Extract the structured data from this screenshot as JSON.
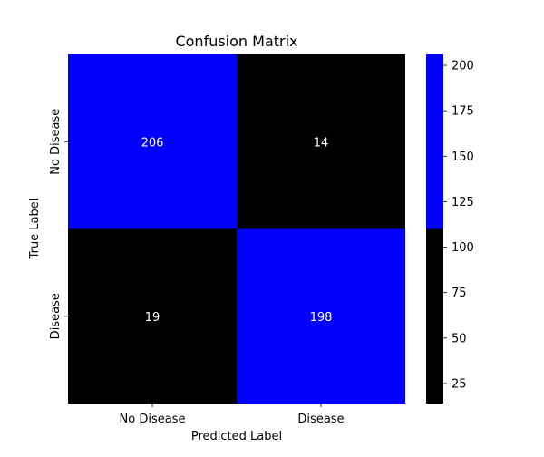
{
  "chart_data": {
    "type": "heatmap",
    "title": "Confusion Matrix",
    "xlabel": "Predicted Label",
    "ylabel": "True Label",
    "x_categories": [
      "No Disease",
      "Disease"
    ],
    "y_categories": [
      "No Disease",
      "Disease"
    ],
    "values": [
      [
        206,
        14
      ],
      [
        19,
        198
      ]
    ],
    "colorbar": {
      "ticks": [
        25,
        50,
        75,
        100,
        125,
        150,
        175,
        200
      ],
      "range": [
        14,
        206
      ],
      "threshold": 110
    },
    "colors": {
      "low": "#000000",
      "high": "#0000ff",
      "annotation_text": "#ffffff",
      "text": "#000000"
    }
  }
}
